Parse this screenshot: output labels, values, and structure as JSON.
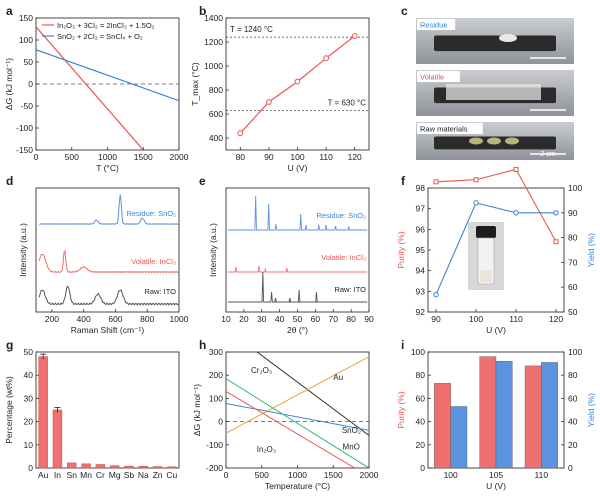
{
  "colors": {
    "red": "#ef5350",
    "blue": "#3a86d6",
    "orange": "#e8a33a",
    "green": "#36b37e",
    "grey": "#555555",
    "lightred": "#ee7070",
    "lightblue": "#5b93e0"
  },
  "panels": {
    "a": {
      "letter": "a",
      "legend": [
        {
          "text": "In₂O₃ + 3Cl₂ = 2InCl₃ + 1.5O₂",
          "color": "#ef5350"
        },
        {
          "text": "SnO₂ + 2Cl₂ = SnCl₄ + O₂",
          "color": "#3a86d6"
        }
      ]
    },
    "b": {
      "letter": "b",
      "ann_high": "T = 1240 °C",
      "ann_low": "T = 630 °C"
    },
    "c": {
      "letter": "c",
      "labels": [
        "Residue",
        "Volatile",
        "Raw materials"
      ],
      "scale": "2 cm"
    },
    "d": {
      "letter": "d",
      "labels": [
        "Residue: SnO₂",
        "Volatile: InCl₃",
        "Raw: ITO"
      ]
    },
    "e": {
      "letter": "e",
      "labels": [
        "Residue: SnO₂",
        "Volatile: InCl₃",
        "Raw: ITO"
      ]
    },
    "f": {
      "letter": "f"
    },
    "g": {
      "letter": "g"
    },
    "h": {
      "letter": "h",
      "labels": [
        "Cr₂O₃",
        "Au",
        "SnO₂",
        "In₂O₃",
        "MnO"
      ]
    },
    "i": {
      "letter": "i"
    }
  },
  "chart_data": [
    {
      "id": "a",
      "type": "line",
      "xlabel": "T (°C)",
      "ylabel": "ΔG (kJ mol⁻¹)",
      "xlim": [
        0,
        2000
      ],
      "ylim": [
        -150,
        150
      ],
      "xticks": [
        0,
        500,
        1000,
        1500,
        2000
      ],
      "yticks": [
        -150,
        -100,
        -50,
        0,
        50,
        100,
        150
      ],
      "series": [
        {
          "name": "In₂O₃ + 3Cl₂ = 2InCl₃ + 1.5O₂",
          "x": [
            0,
            1500
          ],
          "y": [
            130,
            -150
          ]
        },
        {
          "name": "SnO₂ + 2Cl₂ = SnCl₄ + O₂",
          "x": [
            0,
            2000
          ],
          "y": [
            78,
            -38
          ]
        }
      ],
      "zero_line": true
    },
    {
      "id": "b",
      "type": "line",
      "xlabel": "U (V)",
      "ylabel": "T_max (°C)",
      "xlim": [
        75,
        125
      ],
      "ylim": [
        300,
        1400
      ],
      "xticks": [
        80,
        90,
        100,
        110,
        120
      ],
      "yticks": [
        400,
        600,
        800,
        1000,
        1200,
        1400
      ],
      "series": [
        {
          "x": [
            80,
            90,
            100,
            110,
            120
          ],
          "y": [
            440,
            700,
            870,
            1065,
            1250
          ]
        }
      ],
      "hlines": [
        1240,
        630
      ]
    },
    {
      "id": "d",
      "type": "line",
      "xlabel": "Raman Shift (cm⁻¹)",
      "ylabel": "Intensity (a.u.)",
      "xlim": [
        100,
        1000
      ],
      "xticks": [
        200,
        400,
        600,
        800,
        1000
      ]
    },
    {
      "id": "e",
      "type": "line",
      "xlabel": "2θ (°)",
      "ylabel": "Intensity (a.u.)",
      "xlim": [
        10,
        90
      ],
      "xticks": [
        10,
        20,
        30,
        40,
        50,
        60,
        70,
        80,
        90
      ]
    },
    {
      "id": "f",
      "type": "line",
      "xlabel": "U (V)",
      "ylabel": "Purity (%)",
      "y2label": "Yield (%)",
      "xlim": [
        88,
        122
      ],
      "ylim": [
        92,
        98
      ],
      "y2lim": [
        50,
        100
      ],
      "xticks": [
        90,
        100,
        110,
        120
      ],
      "yticks": [
        92,
        93,
        94,
        95,
        96,
        97,
        98
      ],
      "y2ticks": [
        50,
        60,
        70,
        80,
        90,
        100
      ],
      "series": [
        {
          "name": "Purity",
          "axis": "left",
          "x": [
            90,
            100,
            110,
            120
          ],
          "y": [
            98.3,
            98.4,
            98.9,
            95.4
          ]
        },
        {
          "name": "Yield",
          "axis": "right",
          "x": [
            90,
            100,
            110,
            120
          ],
          "y": [
            57,
            94,
            90,
            90
          ]
        }
      ]
    },
    {
      "id": "g",
      "type": "bar",
      "xlabel": "",
      "ylabel": "Percentage (wt%)",
      "ylim": [
        0,
        50
      ],
      "yticks": [
        0,
        10,
        20,
        30,
        40,
        50
      ],
      "categories": [
        "Au",
        "In",
        "Sn",
        "Mn",
        "Cr",
        "Mg",
        "Sb",
        "Na",
        "Zn",
        "Cu"
      ],
      "values": [
        48,
        25,
        2.2,
        1.8,
        1.5,
        1.0,
        0.8,
        0.7,
        0.6,
        0.5
      ]
    },
    {
      "id": "h",
      "type": "line",
      "xlabel": "Temperature (°C)",
      "ylabel": "ΔG (kJ mol⁻¹)",
      "xlim": [
        0,
        2000
      ],
      "ylim": [
        -200,
        300
      ],
      "xticks": [
        0,
        500,
        1000,
        1500,
        2000
      ],
      "yticks": [
        -200,
        -100,
        0,
        100,
        200,
        300
      ],
      "series": [
        {
          "name": "Cr₂O₃",
          "x": [
            0,
            2000
          ],
          "y": [
            400,
            -60
          ]
        },
        {
          "name": "Au",
          "x": [
            0,
            2000
          ],
          "y": [
            -50,
            280
          ]
        },
        {
          "name": "SnO₂",
          "x": [
            0,
            2000
          ],
          "y": [
            78,
            -38
          ]
        },
        {
          "name": "In₂O₃",
          "x": [
            0,
            1800
          ],
          "y": [
            130,
            -200
          ]
        },
        {
          "name": "MnO",
          "x": [
            0,
            2000
          ],
          "y": [
            185,
            -200
          ]
        }
      ],
      "zero_line": true
    },
    {
      "id": "i",
      "type": "bar",
      "xlabel": "U (V)",
      "ylabel": "Purity (%)",
      "y2label": "Yield (%)",
      "ylim": [
        0,
        100
      ],
      "y2lim": [
        0,
        100
      ],
      "yticks": [
        0,
        20,
        40,
        60,
        80,
        100
      ],
      "categories": [
        "100",
        "105",
        "110"
      ],
      "series": [
        {
          "name": "Purity",
          "values": [
            73,
            96,
            88
          ]
        },
        {
          "name": "Yield",
          "values": [
            53,
            92,
            91
          ]
        }
      ]
    }
  ]
}
